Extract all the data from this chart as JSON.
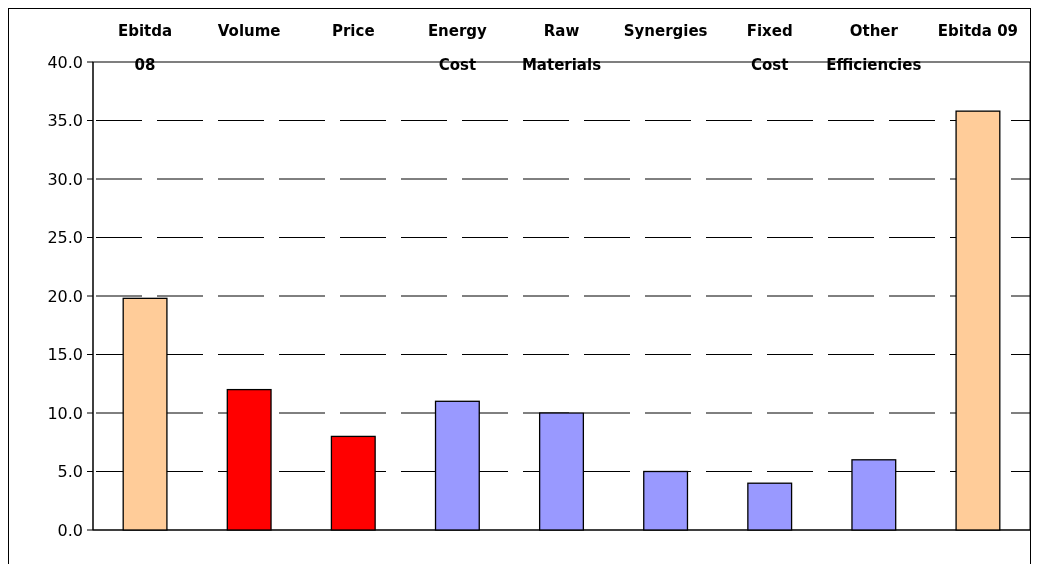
{
  "chart_data": {
    "type": "bar",
    "categories": [
      "Ebitda\n08",
      "Volume",
      "Price",
      "Energy\nCost",
      "Raw\nMaterials",
      "Synergies",
      "Fixed\nCost",
      "Other\nEfficiencies",
      "Ebitda 09"
    ],
    "values": [
      19.8,
      12,
      8,
      11,
      10,
      5,
      4,
      6,
      35.8
    ],
    "colors": [
      "#ffcc99",
      "#ff0000",
      "#ff0000",
      "#9999ff",
      "#9999ff",
      "#9999ff",
      "#9999ff",
      "#9999ff",
      "#ffcc99"
    ],
    "ylim": [
      0,
      40
    ],
    "yticks": [
      {
        "value": 0,
        "label": "0.0"
      },
      {
        "value": 5,
        "label": "5.0"
      },
      {
        "value": 10,
        "label": "10.0"
      },
      {
        "value": 15,
        "label": "15.0"
      },
      {
        "value": 20,
        "label": "20.0"
      },
      {
        "value": 25,
        "label": "25.0"
      },
      {
        "value": 30,
        "label": "30.0"
      },
      {
        "value": 35,
        "label": "35.0"
      },
      {
        "value": 40,
        "label": "40.0"
      }
    ],
    "grid": "y"
  }
}
